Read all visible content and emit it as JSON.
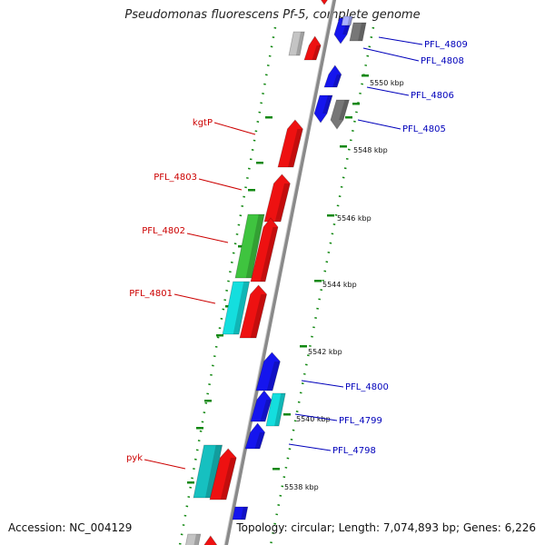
{
  "title": "Pseudomonas fluorescens Pf-5, complete genome",
  "accession": "Accession: NC_004129",
  "topology": "Topology: circular; Length: 7,074,893 bp; Genes: 6,226",
  "ticks": [
    {
      "label": "5550 kbp",
      "value": 5550
    },
    {
      "label": "5548 kbp",
      "value": 5548
    },
    {
      "label": "5546 kbp",
      "value": 5546
    },
    {
      "label": "5544 kbp",
      "value": 5544
    },
    {
      "label": "5542 kbp",
      "value": 5542
    },
    {
      "label": "5540 kbp",
      "value": 5540
    },
    {
      "label": "5538 kbp",
      "value": 5538
    }
  ],
  "left_labels": [
    "kgtP",
    "PFL_4803",
    "PFL_4802",
    "PFL_4801",
    "pyk"
  ],
  "right_labels": [
    "PFL_4809",
    "PFL_4808",
    "PFL_4806",
    "PFL_4805",
    "PFL_4800",
    "PFL_4799",
    "PFL_4798"
  ],
  "colors": {
    "red": "#ee1111",
    "blue": "#1515ee",
    "green": "#3fc43f",
    "cyan": "#14dede",
    "teal": "#16c0c0",
    "gray": "#777777",
    "lightgray": "#c4c4c4",
    "lavender": "#aab0ff",
    "tick": "#118811",
    "left_label": "#cc0000",
    "right_label": "#0000bb"
  }
}
